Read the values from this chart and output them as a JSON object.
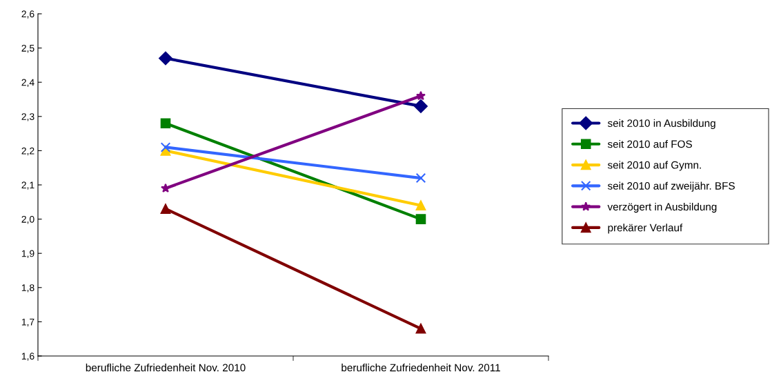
{
  "chart_data": {
    "type": "line",
    "categories": [
      "berufliche Zufriedenheit Nov. 2010",
      "berufliche Zufriedenheit Nov. 2011"
    ],
    "series": [
      {
        "name": "seit 2010 in Ausbildung",
        "color": "#000080",
        "marker": "diamond",
        "values": [
          2.47,
          2.33
        ]
      },
      {
        "name": "seit 2010 auf FOS",
        "color": "#008000",
        "marker": "square",
        "values": [
          2.28,
          2.0
        ]
      },
      {
        "name": "seit 2010 auf Gymn.",
        "color": "#ffcc00",
        "marker": "triangle",
        "values": [
          2.2,
          2.04
        ]
      },
      {
        "name": "seit 2010 auf zweijähr. BFS",
        "color": "#3366ff",
        "marker": "cross",
        "values": [
          2.21,
          2.12
        ]
      },
      {
        "name": "verzögert in Ausbildung",
        "color": "#800080",
        "marker": "star",
        "values": [
          2.09,
          2.36
        ]
      },
      {
        "name": "prekärer Verlauf",
        "color": "#800000",
        "marker": "triangle",
        "values": [
          2.03,
          1.68
        ]
      }
    ],
    "ylim": [
      1.6,
      2.6
    ],
    "yticks": [
      {
        "value": 1.6,
        "label": "1,6"
      },
      {
        "value": 1.7,
        "label": "1,7"
      },
      {
        "value": 1.8,
        "label": "1,8"
      },
      {
        "value": 1.9,
        "label": "1,9"
      },
      {
        "value": 2.0,
        "label": "2,0"
      },
      {
        "value": 2.1,
        "label": "2,1"
      },
      {
        "value": 2.2,
        "label": "2,2"
      },
      {
        "value": 2.3,
        "label": "2,3"
      },
      {
        "value": 2.4,
        "label": "2,4"
      },
      {
        "value": 2.5,
        "label": "2,5"
      },
      {
        "value": 2.6,
        "label": "2,6"
      }
    ],
    "grid": false,
    "legend": "right",
    "line_style": "solid"
  }
}
